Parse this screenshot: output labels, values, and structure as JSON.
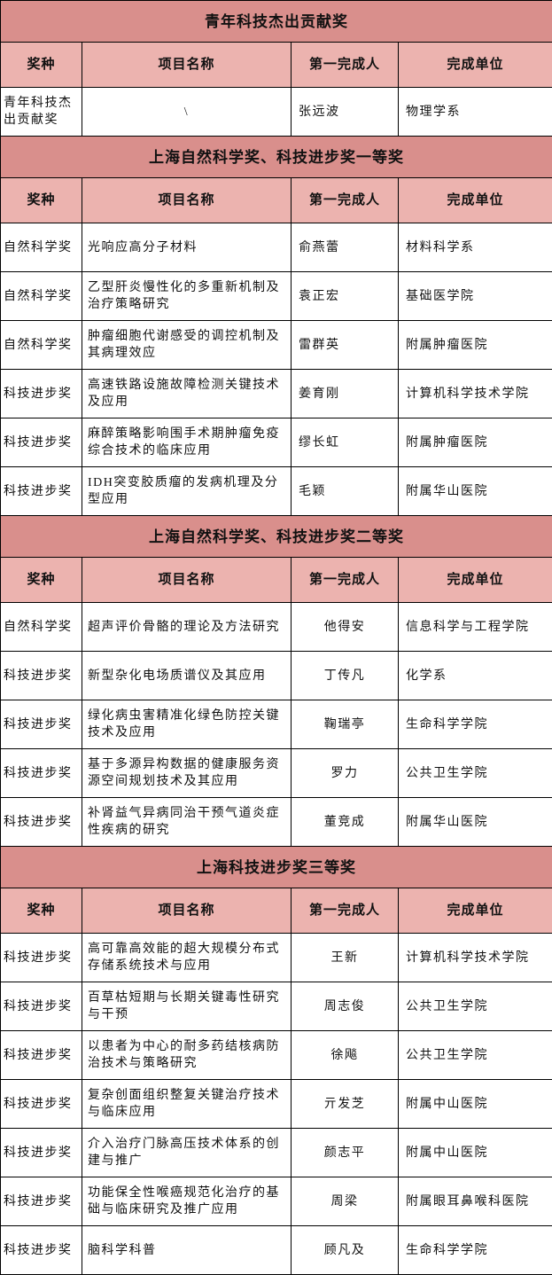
{
  "colors": {
    "section_title_bg": "#d98f8c",
    "column_header_bg": "#ecb3af",
    "border": "#000000",
    "cell_bg": "#ffffff",
    "text": "#111111"
  },
  "table": {
    "columns": [
      "奖种",
      "项目名称",
      "第一完成人",
      "完成单位"
    ],
    "sections": [
      {
        "title": "青年科技杰出贡献奖",
        "rows": [
          {
            "category": "青年科技杰出贡献奖",
            "project": "\\",
            "person": "张远波",
            "unit": "物理学系"
          }
        ]
      },
      {
        "title": "上海自然科学奖、科技进步奖一等奖",
        "rows": [
          {
            "category": "自然科学奖",
            "project": "光响应高分子材料",
            "person": "俞燕蕾",
            "unit": "材料科学系"
          },
          {
            "category": "自然科学奖",
            "project": "乙型肝炎慢性化的多重新机制及治疗策略研究",
            "person": "袁正宏",
            "unit": "基础医学院"
          },
          {
            "category": "自然科学奖",
            "project": "肿瘤细胞代谢感受的调控机制及其病理效应",
            "person": "雷群英",
            "unit": "附属肿瘤医院"
          },
          {
            "category": "科技进步奖",
            "project": "高速铁路设施故障检测关键技术及应用",
            "person": "姜育刚",
            "unit": "计算机科学技术学院"
          },
          {
            "category": "科技进步奖",
            "project": "麻醉策略影响围手术期肿瘤免疫综合技术的临床应用",
            "person": "缪长虹",
            "unit": "附属肿瘤医院"
          },
          {
            "category": "科技进步奖",
            "project": "IDH突变胶质瘤的发病机理及分型应用",
            "person": "毛颖",
            "unit": "附属华山医院"
          }
        ]
      },
      {
        "title": "上海自然科学奖、科技进步奖二等奖",
        "rows": [
          {
            "category": "自然科学奖",
            "project": "超声评价骨骼的理论及方法研究",
            "person": "他得安",
            "unit": "信息科学与工程学院"
          },
          {
            "category": "科技进步奖",
            "project": "新型杂化电场质谱仪及其应用",
            "person": "丁传凡",
            "unit": "化学系"
          },
          {
            "category": "科技进步奖",
            "project": "绿化病虫害精准化绿色防控关键技术及应用",
            "person": "鞠瑞亭",
            "unit": "生命科学学院"
          },
          {
            "category": "科技进步奖",
            "project": "基于多源异构数据的健康服务资源空间规划技术及其应用",
            "person": "罗力",
            "unit": "公共卫生学院"
          },
          {
            "category": "科技进步奖",
            "project": "补肾益气异病同治干预气道炎症性疾病的研究",
            "person": "董竞成",
            "unit": "附属华山医院"
          }
        ]
      },
      {
        "title": "上海科技进步奖三等奖",
        "rows": [
          {
            "category": "科技进步奖",
            "project": "高可靠高效能的超大规模分布式存储系统技术与应用",
            "person": "王新",
            "unit": "计算机科学技术学院"
          },
          {
            "category": "科技进步奖",
            "project": "百草枯短期与长期关键毒性研究与干预",
            "person": "周志俊",
            "unit": "公共卫生学院"
          },
          {
            "category": "科技进步奖",
            "project": "以患者为中心的耐多药结核病防治技术与策略研究",
            "person": "徐飚",
            "unit": "公共卫生学院"
          },
          {
            "category": "科技进步奖",
            "project": "复杂创面组织整复关键治疗技术与临床应用",
            "person": "亓发芝",
            "unit": "附属中山医院"
          },
          {
            "category": "科技进步奖",
            "project": "介入治疗门脉高压技术体系的创建与推广",
            "person": "颜志平",
            "unit": "附属中山医院"
          },
          {
            "category": "科技进步奖",
            "project": "功能保全性喉癌规范化治疗的基础与临床研究及推广应用",
            "person": "周梁",
            "unit": "附属眼耳鼻喉科医院"
          },
          {
            "category": "科技进步奖",
            "project": "脑科学科普",
            "person": "顾凡及",
            "unit": "生命科学学院"
          }
        ]
      }
    ]
  }
}
